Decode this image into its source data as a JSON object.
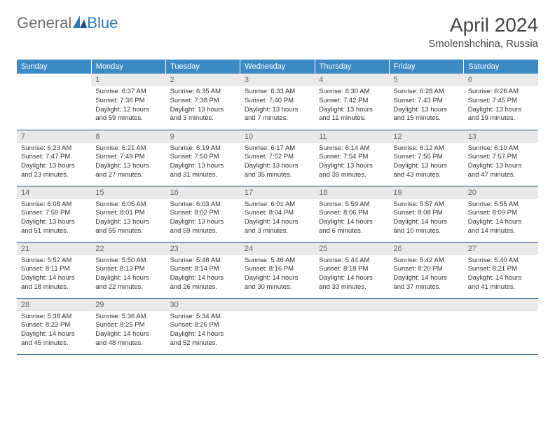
{
  "logo": {
    "text1": "General",
    "text2": "Blue"
  },
  "title": "April 2024",
  "location": "Smolenshchina, Russia",
  "header_bg": "#3b8ac4",
  "header_fg": "#ffffff",
  "border_color": "#1f4e79",
  "daynum_bg": "#e9e9e9",
  "daynum_fg": "#6b6b6b",
  "text_color": "#333333",
  "dow": [
    "Sunday",
    "Monday",
    "Tuesday",
    "Wednesday",
    "Thursday",
    "Friday",
    "Saturday"
  ],
  "weeks": [
    [
      null,
      {
        "n": "1",
        "sr": "6:37 AM",
        "ss": "7:36 PM",
        "dl": "12 hours and 59 minutes."
      },
      {
        "n": "2",
        "sr": "6:35 AM",
        "ss": "7:38 PM",
        "dl": "13 hours and 3 minutes."
      },
      {
        "n": "3",
        "sr": "6:33 AM",
        "ss": "7:40 PM",
        "dl": "13 hours and 7 minutes."
      },
      {
        "n": "4",
        "sr": "6:30 AM",
        "ss": "7:42 PM",
        "dl": "13 hours and 11 minutes."
      },
      {
        "n": "5",
        "sr": "6:28 AM",
        "ss": "7:43 PM",
        "dl": "13 hours and 15 minutes."
      },
      {
        "n": "6",
        "sr": "6:26 AM",
        "ss": "7:45 PM",
        "dl": "13 hours and 19 minutes."
      }
    ],
    [
      {
        "n": "7",
        "sr": "6:23 AM",
        "ss": "7:47 PM",
        "dl": "13 hours and 23 minutes."
      },
      {
        "n": "8",
        "sr": "6:21 AM",
        "ss": "7:49 PM",
        "dl": "13 hours and 27 minutes."
      },
      {
        "n": "9",
        "sr": "6:19 AM",
        "ss": "7:50 PM",
        "dl": "13 hours and 31 minutes."
      },
      {
        "n": "10",
        "sr": "6:17 AM",
        "ss": "7:52 PM",
        "dl": "13 hours and 35 minutes."
      },
      {
        "n": "11",
        "sr": "6:14 AM",
        "ss": "7:54 PM",
        "dl": "13 hours and 39 minutes."
      },
      {
        "n": "12",
        "sr": "6:12 AM",
        "ss": "7:55 PM",
        "dl": "13 hours and 43 minutes."
      },
      {
        "n": "13",
        "sr": "6:10 AM",
        "ss": "7:57 PM",
        "dl": "13 hours and 47 minutes."
      }
    ],
    [
      {
        "n": "14",
        "sr": "6:08 AM",
        "ss": "7:59 PM",
        "dl": "13 hours and 51 minutes."
      },
      {
        "n": "15",
        "sr": "6:05 AM",
        "ss": "8:01 PM",
        "dl": "13 hours and 55 minutes."
      },
      {
        "n": "16",
        "sr": "6:03 AM",
        "ss": "8:02 PM",
        "dl": "13 hours and 59 minutes."
      },
      {
        "n": "17",
        "sr": "6:01 AM",
        "ss": "8:04 PM",
        "dl": "14 hours and 3 minutes."
      },
      {
        "n": "18",
        "sr": "5:59 AM",
        "ss": "8:06 PM",
        "dl": "14 hours and 6 minutes."
      },
      {
        "n": "19",
        "sr": "5:57 AM",
        "ss": "8:08 PM",
        "dl": "14 hours and 10 minutes."
      },
      {
        "n": "20",
        "sr": "5:55 AM",
        "ss": "8:09 PM",
        "dl": "14 hours and 14 minutes."
      }
    ],
    [
      {
        "n": "21",
        "sr": "5:52 AM",
        "ss": "8:11 PM",
        "dl": "14 hours and 18 minutes."
      },
      {
        "n": "22",
        "sr": "5:50 AM",
        "ss": "8:13 PM",
        "dl": "14 hours and 22 minutes."
      },
      {
        "n": "23",
        "sr": "5:48 AM",
        "ss": "8:14 PM",
        "dl": "14 hours and 26 minutes."
      },
      {
        "n": "24",
        "sr": "5:46 AM",
        "ss": "8:16 PM",
        "dl": "14 hours and 30 minutes."
      },
      {
        "n": "25",
        "sr": "5:44 AM",
        "ss": "8:18 PM",
        "dl": "14 hours and 33 minutes."
      },
      {
        "n": "26",
        "sr": "5:42 AM",
        "ss": "8:20 PM",
        "dl": "14 hours and 37 minutes."
      },
      {
        "n": "27",
        "sr": "5:40 AM",
        "ss": "8:21 PM",
        "dl": "14 hours and 41 minutes."
      }
    ],
    [
      {
        "n": "28",
        "sr": "5:38 AM",
        "ss": "8:23 PM",
        "dl": "14 hours and 45 minutes."
      },
      {
        "n": "29",
        "sr": "5:36 AM",
        "ss": "8:25 PM",
        "dl": "14 hours and 48 minutes."
      },
      {
        "n": "30",
        "sr": "5:34 AM",
        "ss": "8:26 PM",
        "dl": "14 hours and 52 minutes."
      },
      {
        "tail": true
      },
      {
        "tail": true
      },
      {
        "tail": true
      },
      {
        "tail": true
      }
    ]
  ],
  "labels": {
    "sunrise": "Sunrise:",
    "sunset": "Sunset:",
    "daylight": "Daylight:"
  }
}
